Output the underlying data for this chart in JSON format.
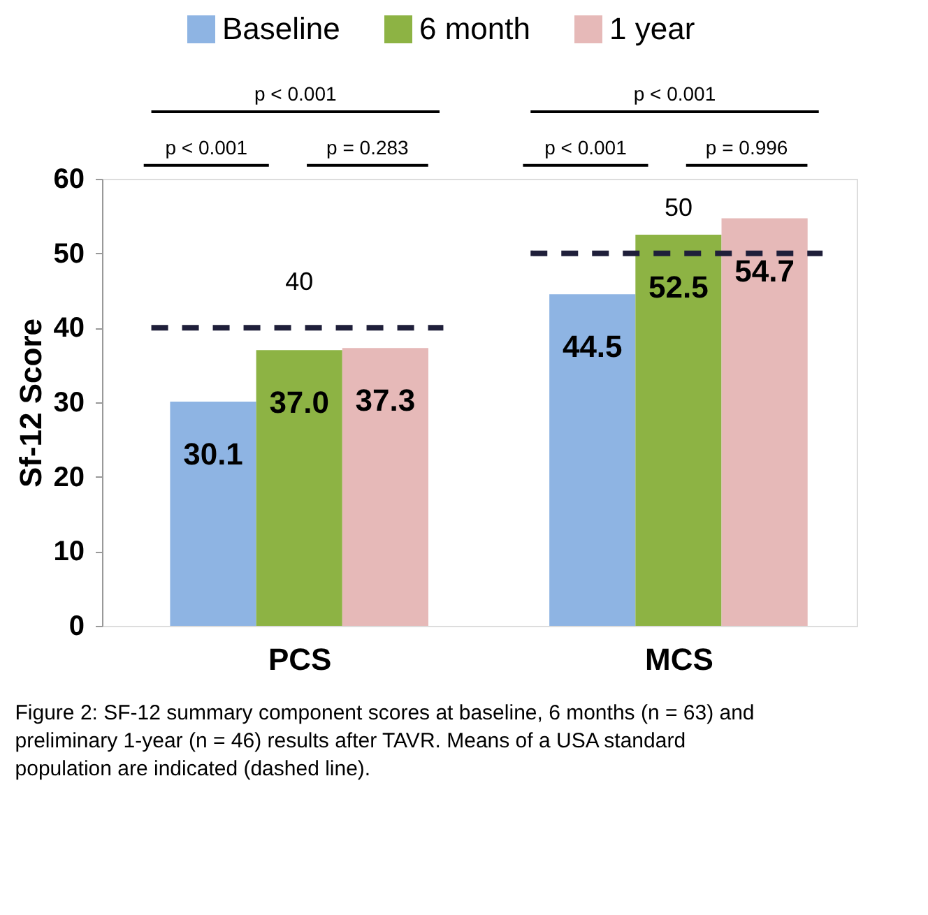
{
  "chart_data": {
    "type": "bar",
    "ylabel": "Sf-12 Score",
    "categories": [
      "PCS",
      "MCS"
    ],
    "series": [
      {
        "name": "Baseline",
        "color": "#8eb4e3",
        "values": [
          30.1,
          44.5
        ],
        "value_labels": [
          "30.1",
          "44.5"
        ]
      },
      {
        "name": "6 month",
        "color": "#8db344",
        "values": [
          37.0,
          52.5
        ],
        "value_labels": [
          "37.0",
          "52.5"
        ]
      },
      {
        "name": "1 year",
        "color": "#e6b9b8",
        "values": [
          37.3,
          54.7
        ],
        "value_labels": [
          "37.3",
          "54.7"
        ]
      }
    ],
    "ylim": [
      0,
      60
    ],
    "yticks": [
      0,
      10,
      20,
      30,
      40,
      50,
      60
    ],
    "grid": false,
    "legend": "top",
    "ref_lines": [
      {
        "axis": "y",
        "value": 40,
        "label": "40",
        "color": "#1f1f3a",
        "line_style": "dashed"
      },
      {
        "axis": "y",
        "value": 50,
        "label": "50",
        "color": "#1f1f3a",
        "line_style": "dashed"
      }
    ],
    "annotations": [
      "p < 0.001",
      "p < 0.001",
      "p = 0.283",
      "p < 0.001",
      "p < 0.001",
      "p = 0.996",
      "Figure 2: SF-12 summary component scores at baseline, 6 months (n = 63) and preliminary 1-year (n = 46) results after TAVR. Means of a USA standard population are indicated (dashed line)."
    ]
  }
}
